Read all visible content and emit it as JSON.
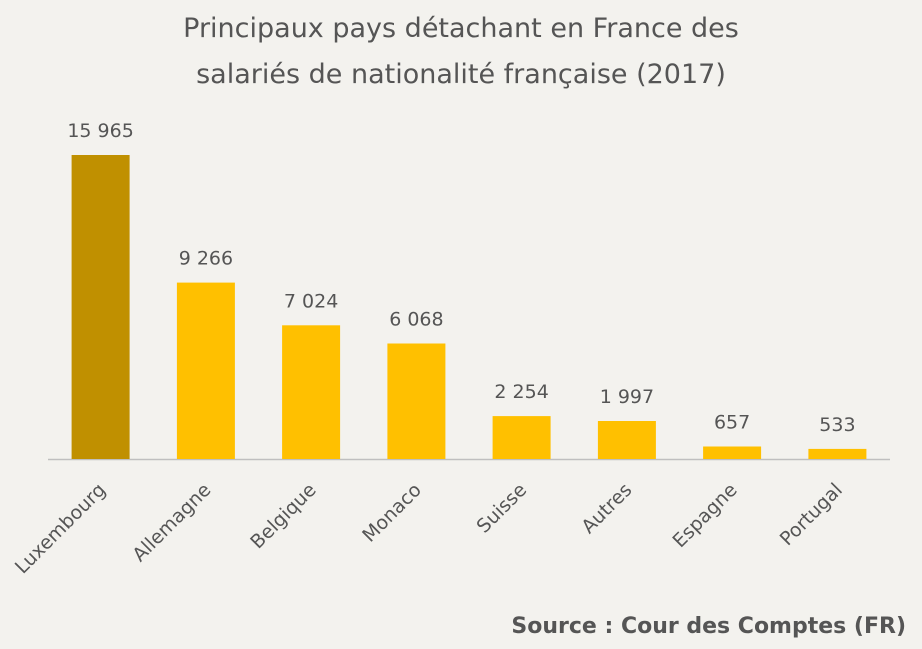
{
  "chart_data": {
    "type": "bar",
    "title_lines": [
      "Principaux pays détachant en France des",
      "salariés de nationalité française (2017)"
    ],
    "categories": [
      "Luxembourg",
      "Allemagne",
      "Belgique",
      "Monaco",
      "Suisse",
      "Autres",
      "Espagne",
      "Portugal"
    ],
    "values": [
      15965,
      9266,
      7024,
      6068,
      2254,
      1997,
      657,
      533
    ],
    "value_labels": [
      "15 965",
      "9 266",
      "7 024",
      "6 068",
      "2 254",
      "1 997",
      "657",
      "533"
    ],
    "highlight_index": 0,
    "colors": {
      "highlight": "#c09000",
      "bar": "#ffc000",
      "axis": "#bfbfbf",
      "text": "#555555",
      "background": "#f3f2ee"
    },
    "ylim": [
      0,
      15965
    ],
    "grid": false,
    "legend": "none"
  },
  "source": "Source : Cour des Comptes (FR)"
}
